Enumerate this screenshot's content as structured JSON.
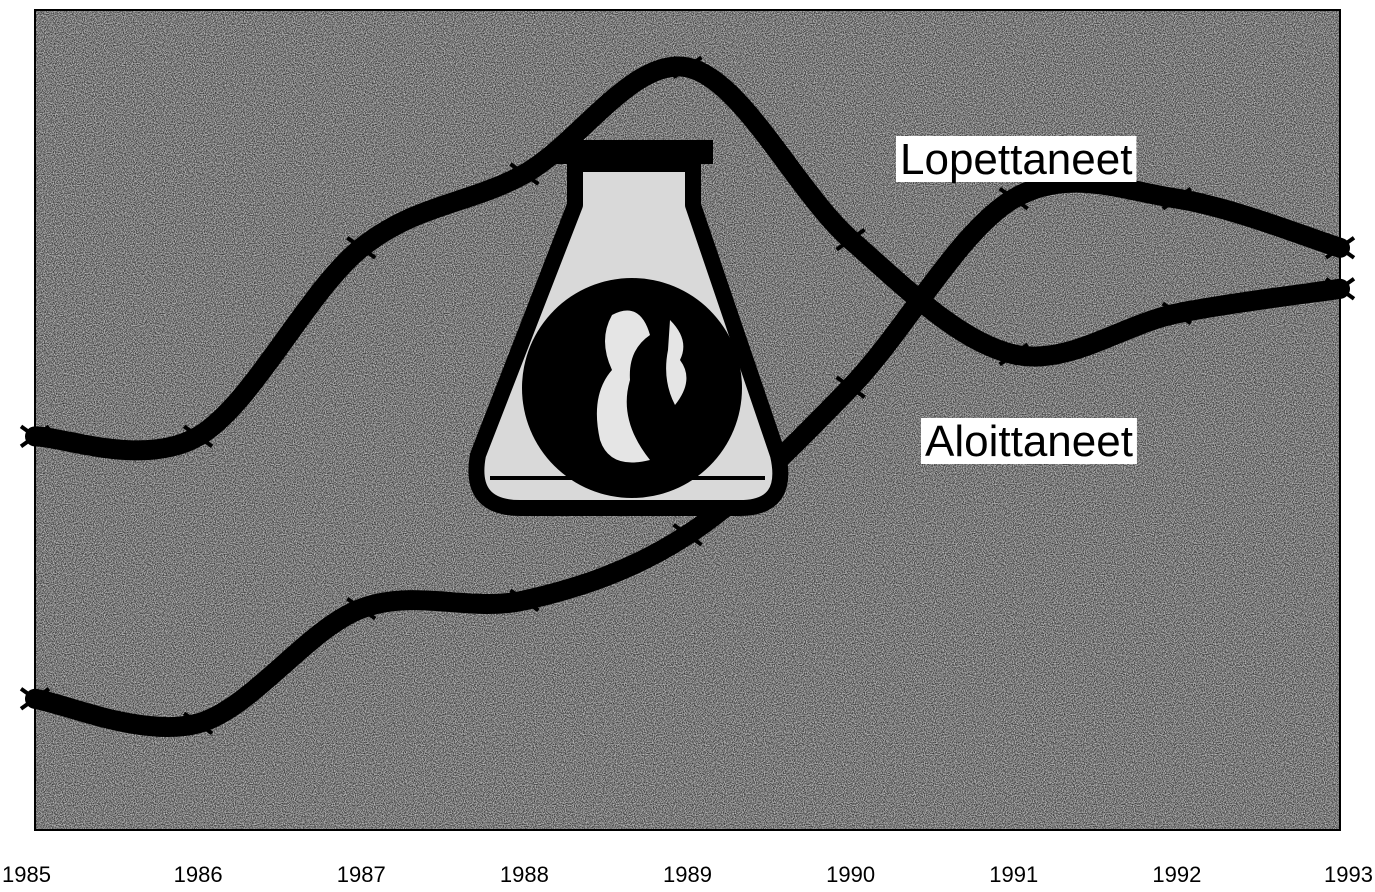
{
  "chart_data": {
    "type": "line",
    "categories": [
      "1985",
      "1986",
      "1987",
      "1988",
      "1989",
      "1990",
      "1991",
      "1992",
      "1993"
    ],
    "series": [
      {
        "name": "Aloittaneet",
        "color": "#000000",
        "values": [
          48,
          48,
          71,
          80,
          93,
          72,
          58,
          63,
          66
        ]
      },
      {
        "name": "Lopettaneet",
        "color": "#000000",
        "values": [
          16,
          13,
          27,
          28,
          36,
          54,
          77,
          77,
          71
        ]
      }
    ],
    "ylim": [
      0,
      100
    ]
  }
}
